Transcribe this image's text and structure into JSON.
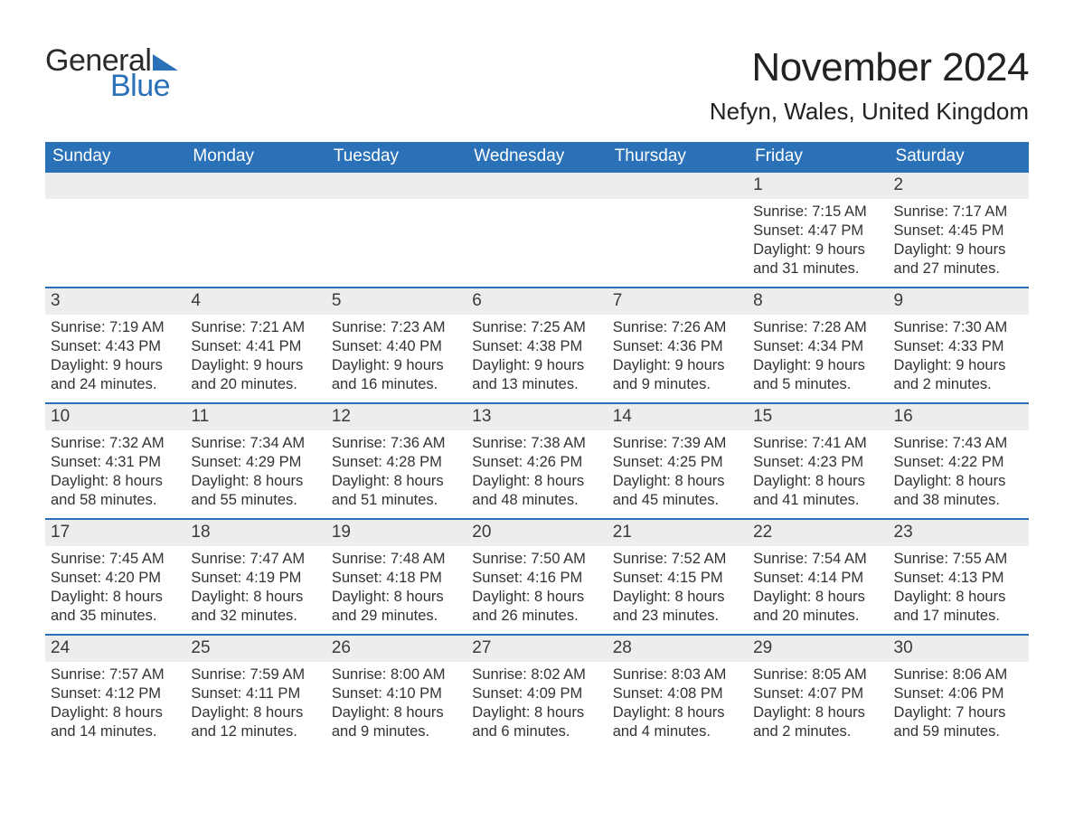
{
  "logo": {
    "word1": "General",
    "word2": "Blue"
  },
  "title": "November 2024",
  "location": "Nefyn, Wales, United Kingdom",
  "colors": {
    "header_bg": "#2a71b8",
    "header_text": "#ffffff",
    "daynum_bg": "#ededed",
    "body_text": "#333333",
    "page_bg": "#ffffff",
    "rule": "#2a71b8"
  },
  "typography": {
    "title_fontsize": 44,
    "location_fontsize": 26,
    "header_fontsize": 19,
    "daynum_fontsize": 19,
    "body_fontsize": 16.5
  },
  "layout": {
    "columns": 7,
    "rows": 5,
    "first_weekday_index": 5
  },
  "weekdays": [
    "Sunday",
    "Monday",
    "Tuesday",
    "Wednesday",
    "Thursday",
    "Friday",
    "Saturday"
  ],
  "weeks": [
    [
      null,
      null,
      null,
      null,
      null,
      {
        "n": "1",
        "sunrise": "Sunrise: 7:15 AM",
        "sunset": "Sunset: 4:47 PM",
        "d1": "Daylight: 9 hours",
        "d2": "and 31 minutes."
      },
      {
        "n": "2",
        "sunrise": "Sunrise: 7:17 AM",
        "sunset": "Sunset: 4:45 PM",
        "d1": "Daylight: 9 hours",
        "d2": "and 27 minutes."
      }
    ],
    [
      {
        "n": "3",
        "sunrise": "Sunrise: 7:19 AM",
        "sunset": "Sunset: 4:43 PM",
        "d1": "Daylight: 9 hours",
        "d2": "and 24 minutes."
      },
      {
        "n": "4",
        "sunrise": "Sunrise: 7:21 AM",
        "sunset": "Sunset: 4:41 PM",
        "d1": "Daylight: 9 hours",
        "d2": "and 20 minutes."
      },
      {
        "n": "5",
        "sunrise": "Sunrise: 7:23 AM",
        "sunset": "Sunset: 4:40 PM",
        "d1": "Daylight: 9 hours",
        "d2": "and 16 minutes."
      },
      {
        "n": "6",
        "sunrise": "Sunrise: 7:25 AM",
        "sunset": "Sunset: 4:38 PM",
        "d1": "Daylight: 9 hours",
        "d2": "and 13 minutes."
      },
      {
        "n": "7",
        "sunrise": "Sunrise: 7:26 AM",
        "sunset": "Sunset: 4:36 PM",
        "d1": "Daylight: 9 hours",
        "d2": "and 9 minutes."
      },
      {
        "n": "8",
        "sunrise": "Sunrise: 7:28 AM",
        "sunset": "Sunset: 4:34 PM",
        "d1": "Daylight: 9 hours",
        "d2": "and 5 minutes."
      },
      {
        "n": "9",
        "sunrise": "Sunrise: 7:30 AM",
        "sunset": "Sunset: 4:33 PM",
        "d1": "Daylight: 9 hours",
        "d2": "and 2 minutes."
      }
    ],
    [
      {
        "n": "10",
        "sunrise": "Sunrise: 7:32 AM",
        "sunset": "Sunset: 4:31 PM",
        "d1": "Daylight: 8 hours",
        "d2": "and 58 minutes."
      },
      {
        "n": "11",
        "sunrise": "Sunrise: 7:34 AM",
        "sunset": "Sunset: 4:29 PM",
        "d1": "Daylight: 8 hours",
        "d2": "and 55 minutes."
      },
      {
        "n": "12",
        "sunrise": "Sunrise: 7:36 AM",
        "sunset": "Sunset: 4:28 PM",
        "d1": "Daylight: 8 hours",
        "d2": "and 51 minutes."
      },
      {
        "n": "13",
        "sunrise": "Sunrise: 7:38 AM",
        "sunset": "Sunset: 4:26 PM",
        "d1": "Daylight: 8 hours",
        "d2": "and 48 minutes."
      },
      {
        "n": "14",
        "sunrise": "Sunrise: 7:39 AM",
        "sunset": "Sunset: 4:25 PM",
        "d1": "Daylight: 8 hours",
        "d2": "and 45 minutes."
      },
      {
        "n": "15",
        "sunrise": "Sunrise: 7:41 AM",
        "sunset": "Sunset: 4:23 PM",
        "d1": "Daylight: 8 hours",
        "d2": "and 41 minutes."
      },
      {
        "n": "16",
        "sunrise": "Sunrise: 7:43 AM",
        "sunset": "Sunset: 4:22 PM",
        "d1": "Daylight: 8 hours",
        "d2": "and 38 minutes."
      }
    ],
    [
      {
        "n": "17",
        "sunrise": "Sunrise: 7:45 AM",
        "sunset": "Sunset: 4:20 PM",
        "d1": "Daylight: 8 hours",
        "d2": "and 35 minutes."
      },
      {
        "n": "18",
        "sunrise": "Sunrise: 7:47 AM",
        "sunset": "Sunset: 4:19 PM",
        "d1": "Daylight: 8 hours",
        "d2": "and 32 minutes."
      },
      {
        "n": "19",
        "sunrise": "Sunrise: 7:48 AM",
        "sunset": "Sunset: 4:18 PM",
        "d1": "Daylight: 8 hours",
        "d2": "and 29 minutes."
      },
      {
        "n": "20",
        "sunrise": "Sunrise: 7:50 AM",
        "sunset": "Sunset: 4:16 PM",
        "d1": "Daylight: 8 hours",
        "d2": "and 26 minutes."
      },
      {
        "n": "21",
        "sunrise": "Sunrise: 7:52 AM",
        "sunset": "Sunset: 4:15 PM",
        "d1": "Daylight: 8 hours",
        "d2": "and 23 minutes."
      },
      {
        "n": "22",
        "sunrise": "Sunrise: 7:54 AM",
        "sunset": "Sunset: 4:14 PM",
        "d1": "Daylight: 8 hours",
        "d2": "and 20 minutes."
      },
      {
        "n": "23",
        "sunrise": "Sunrise: 7:55 AM",
        "sunset": "Sunset: 4:13 PM",
        "d1": "Daylight: 8 hours",
        "d2": "and 17 minutes."
      }
    ],
    [
      {
        "n": "24",
        "sunrise": "Sunrise: 7:57 AM",
        "sunset": "Sunset: 4:12 PM",
        "d1": "Daylight: 8 hours",
        "d2": "and 14 minutes."
      },
      {
        "n": "25",
        "sunrise": "Sunrise: 7:59 AM",
        "sunset": "Sunset: 4:11 PM",
        "d1": "Daylight: 8 hours",
        "d2": "and 12 minutes."
      },
      {
        "n": "26",
        "sunrise": "Sunrise: 8:00 AM",
        "sunset": "Sunset: 4:10 PM",
        "d1": "Daylight: 8 hours",
        "d2": "and 9 minutes."
      },
      {
        "n": "27",
        "sunrise": "Sunrise: 8:02 AM",
        "sunset": "Sunset: 4:09 PM",
        "d1": "Daylight: 8 hours",
        "d2": "and 6 minutes."
      },
      {
        "n": "28",
        "sunrise": "Sunrise: 8:03 AM",
        "sunset": "Sunset: 4:08 PM",
        "d1": "Daylight: 8 hours",
        "d2": "and 4 minutes."
      },
      {
        "n": "29",
        "sunrise": "Sunrise: 8:05 AM",
        "sunset": "Sunset: 4:07 PM",
        "d1": "Daylight: 8 hours",
        "d2": "and 2 minutes."
      },
      {
        "n": "30",
        "sunrise": "Sunrise: 8:06 AM",
        "sunset": "Sunset: 4:06 PM",
        "d1": "Daylight: 7 hours",
        "d2": "and 59 minutes."
      }
    ]
  ]
}
